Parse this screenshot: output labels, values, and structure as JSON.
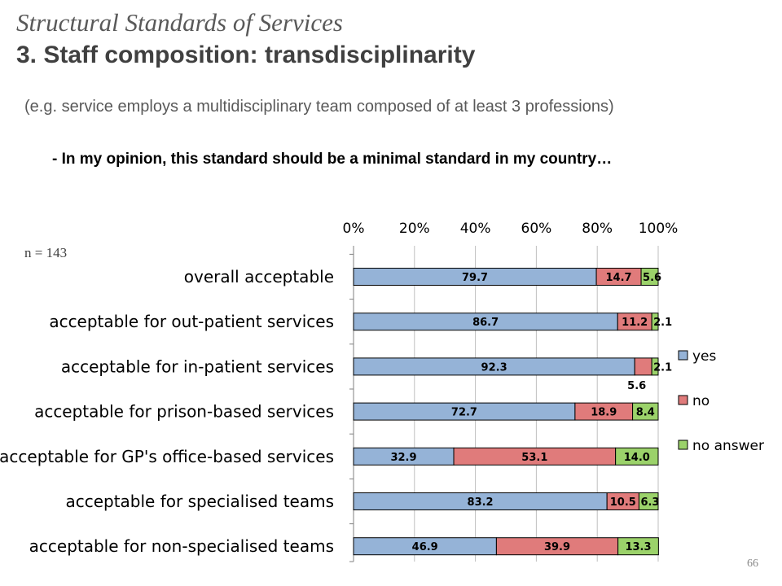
{
  "header": {
    "title": "Structural Standards of Services",
    "subtitle": "3. Staff composition: transdisciplinarity",
    "example": "(e.g. service employs a multidisciplinary team composed of at least 3 professions)",
    "statement": "- In my opinion, this standard should be a minimal standard in my country…"
  },
  "sample_label": "n = 143",
  "page_number": "66",
  "colors": {
    "yes": "#95b3d7",
    "no": "#e07b7b",
    "no_answer": "#9bd26a",
    "grid": "#bfbfbf",
    "axis": "#808080"
  },
  "chart_data": {
    "type": "bar",
    "orientation": "horizontal",
    "stacked": true,
    "percent": true,
    "xlim": [
      0,
      100
    ],
    "x_ticks": [
      "0%",
      "20%",
      "40%",
      "60%",
      "80%",
      "100%"
    ],
    "x_tick_values": [
      0,
      20,
      40,
      60,
      80,
      100
    ],
    "x_axis_position": "top",
    "grid": true,
    "legend_position": "right",
    "categories": [
      "overall acceptable",
      "acceptable for out-patient services",
      "acceptable for in-patient services",
      "acceptable for prison-based services",
      "acceptable for GP's office-based services",
      "acceptable for specialised teams",
      "acceptable for non-specialised teams"
    ],
    "series": [
      {
        "name": "yes",
        "values": [
          79.7,
          86.7,
          92.3,
          72.7,
          32.9,
          83.2,
          46.9
        ]
      },
      {
        "name": "no",
        "values": [
          14.7,
          11.2,
          5.6,
          18.9,
          53.1,
          10.5,
          39.9
        ]
      },
      {
        "name": "no answer",
        "values": [
          5.6,
          2.1,
          2.1,
          8.4,
          14.0,
          6.3,
          13.3
        ]
      }
    ],
    "data_labels": [
      [
        "79.7",
        "14.7",
        "5.6"
      ],
      [
        "86.7",
        "11.2",
        "2.1"
      ],
      [
        "92.3",
        "5.6",
        "2.1"
      ],
      [
        "72.7",
        "18.9",
        "8.4"
      ],
      [
        "32.9",
        "53.1",
        "14.0"
      ],
      [
        "83.2",
        "10.5",
        "6.3"
      ],
      [
        "46.9",
        "39.9",
        "13.3"
      ]
    ]
  }
}
